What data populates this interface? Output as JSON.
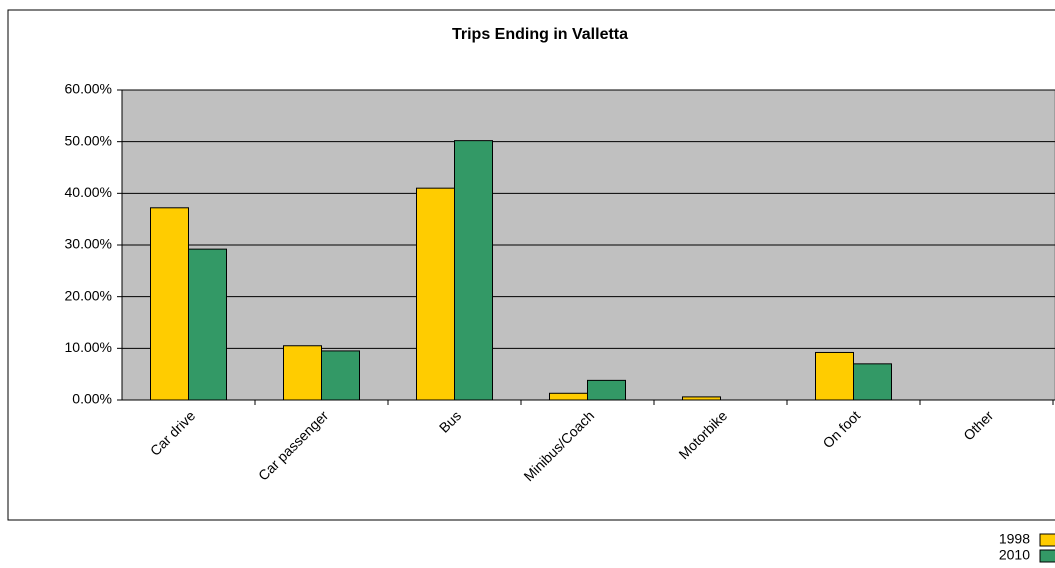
{
  "chart_data": {
    "type": "bar",
    "title": "Trips Ending in Valletta",
    "categories": [
      "Car drive",
      "Car passenger",
      "Bus",
      "Minibus/Coach",
      "Motorbike",
      "On foot",
      "Other"
    ],
    "series": [
      {
        "name": "1998",
        "color": "#ffcc00",
        "values": [
          37.2,
          10.5,
          41.0,
          1.3,
          0.6,
          9.2,
          0
        ]
      },
      {
        "name": "2010",
        "color": "#339966",
        "values": [
          29.2,
          9.5,
          50.2,
          3.8,
          0,
          7.0,
          0
        ]
      }
    ],
    "ylim": [
      0,
      60
    ],
    "yticks": [
      {
        "value": 0,
        "label": "0.00%"
      },
      {
        "value": 10,
        "label": "10.00%"
      },
      {
        "value": 20,
        "label": "20.00%"
      },
      {
        "value": 30,
        "label": "30.00%"
      },
      {
        "value": 40,
        "label": "40.00%"
      },
      {
        "value": 50,
        "label": "50.00%"
      },
      {
        "value": 60,
        "label": "60.00%"
      }
    ],
    "grid": true,
    "legend": "bottom-right",
    "plot_background": "#c0c0c0"
  }
}
